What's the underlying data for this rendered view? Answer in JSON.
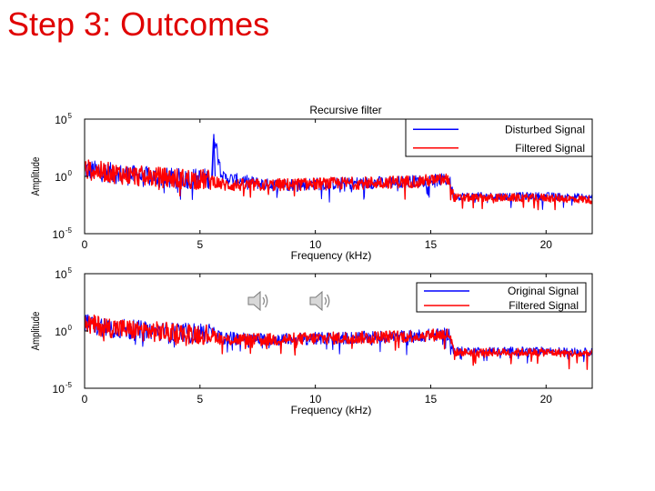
{
  "slide": {
    "title": "Step 3: Outcomes"
  },
  "colors": {
    "title": "#e00000",
    "series_blue": "#0000ff",
    "series_red": "#ff0000",
    "axes": "#000000"
  },
  "icons": [
    "speaker-icon",
    "speaker-icon"
  ],
  "chart_data": [
    {
      "type": "line",
      "title": "Recursive filter",
      "xlabel": "Frequency (kHz)",
      "ylabel": "Amplitude",
      "xlim": [
        0,
        22
      ],
      "ylim_log10": [
        -5,
        5
      ],
      "yscale": "log",
      "xticks": [
        "0",
        "5",
        "10",
        "15",
        "20"
      ],
      "yticks": [
        {
          "base": "10",
          "exp": "5"
        },
        {
          "base": "10",
          "exp": "0"
        },
        {
          "base": "10",
          "exp": "-5"
        }
      ],
      "legend_position": "top-right",
      "series": [
        {
          "name": "Disturbed Signal",
          "color": "#0000ff",
          "x": [
            0,
            2,
            4,
            5.5,
            5.6,
            6,
            8,
            10,
            12,
            14,
            15.8,
            16,
            18,
            20,
            22
          ],
          "y": [
            5,
            1.5,
            0.8,
            0.8,
            5000,
            0.9,
            0.2,
            0.25,
            0.3,
            0.4,
            0.6,
            0.02,
            0.02,
            0.02,
            0.015
          ]
        },
        {
          "name": "Filtered Signal",
          "color": "#ff0000",
          "x": [
            0,
            2,
            4,
            5.5,
            6,
            8,
            10,
            12,
            14,
            15.8,
            16,
            18,
            20,
            22
          ],
          "y": [
            5,
            1.5,
            0.8,
            0.6,
            0.2,
            0.2,
            0.25,
            0.3,
            0.4,
            0.6,
            0.015,
            0.015,
            0.015,
            0.01
          ]
        }
      ]
    },
    {
      "type": "line",
      "title": "",
      "xlabel": "Frequency (kHz)",
      "ylabel": "Amplitude",
      "xlim": [
        0,
        22
      ],
      "ylim_log10": [
        -5,
        5
      ],
      "yscale": "log",
      "xticks": [
        "0",
        "5",
        "10",
        "15",
        "20"
      ],
      "yticks": [
        {
          "base": "10",
          "exp": "5"
        },
        {
          "base": "10",
          "exp": "0"
        },
        {
          "base": "10",
          "exp": "-5"
        }
      ],
      "legend_position": "top-right",
      "series": [
        {
          "name": "Original Signal",
          "color": "#0000ff",
          "x": [
            0,
            2,
            4,
            5.5,
            6,
            8,
            10,
            12,
            14,
            15.8,
            16,
            18,
            20,
            22
          ],
          "y": [
            5,
            1.5,
            0.8,
            0.8,
            0.3,
            0.2,
            0.25,
            0.3,
            0.4,
            0.6,
            0.02,
            0.02,
            0.02,
            0.015
          ]
        },
        {
          "name": "Filtered Signal",
          "color": "#ff0000",
          "x": [
            0,
            2,
            4,
            5.5,
            6,
            8,
            10,
            12,
            14,
            15.8,
            16,
            18,
            20,
            22
          ],
          "y": [
            5,
            1.5,
            0.8,
            0.6,
            0.2,
            0.2,
            0.25,
            0.3,
            0.4,
            0.6,
            0.015,
            0.015,
            0.015,
            0.01
          ]
        }
      ]
    }
  ]
}
